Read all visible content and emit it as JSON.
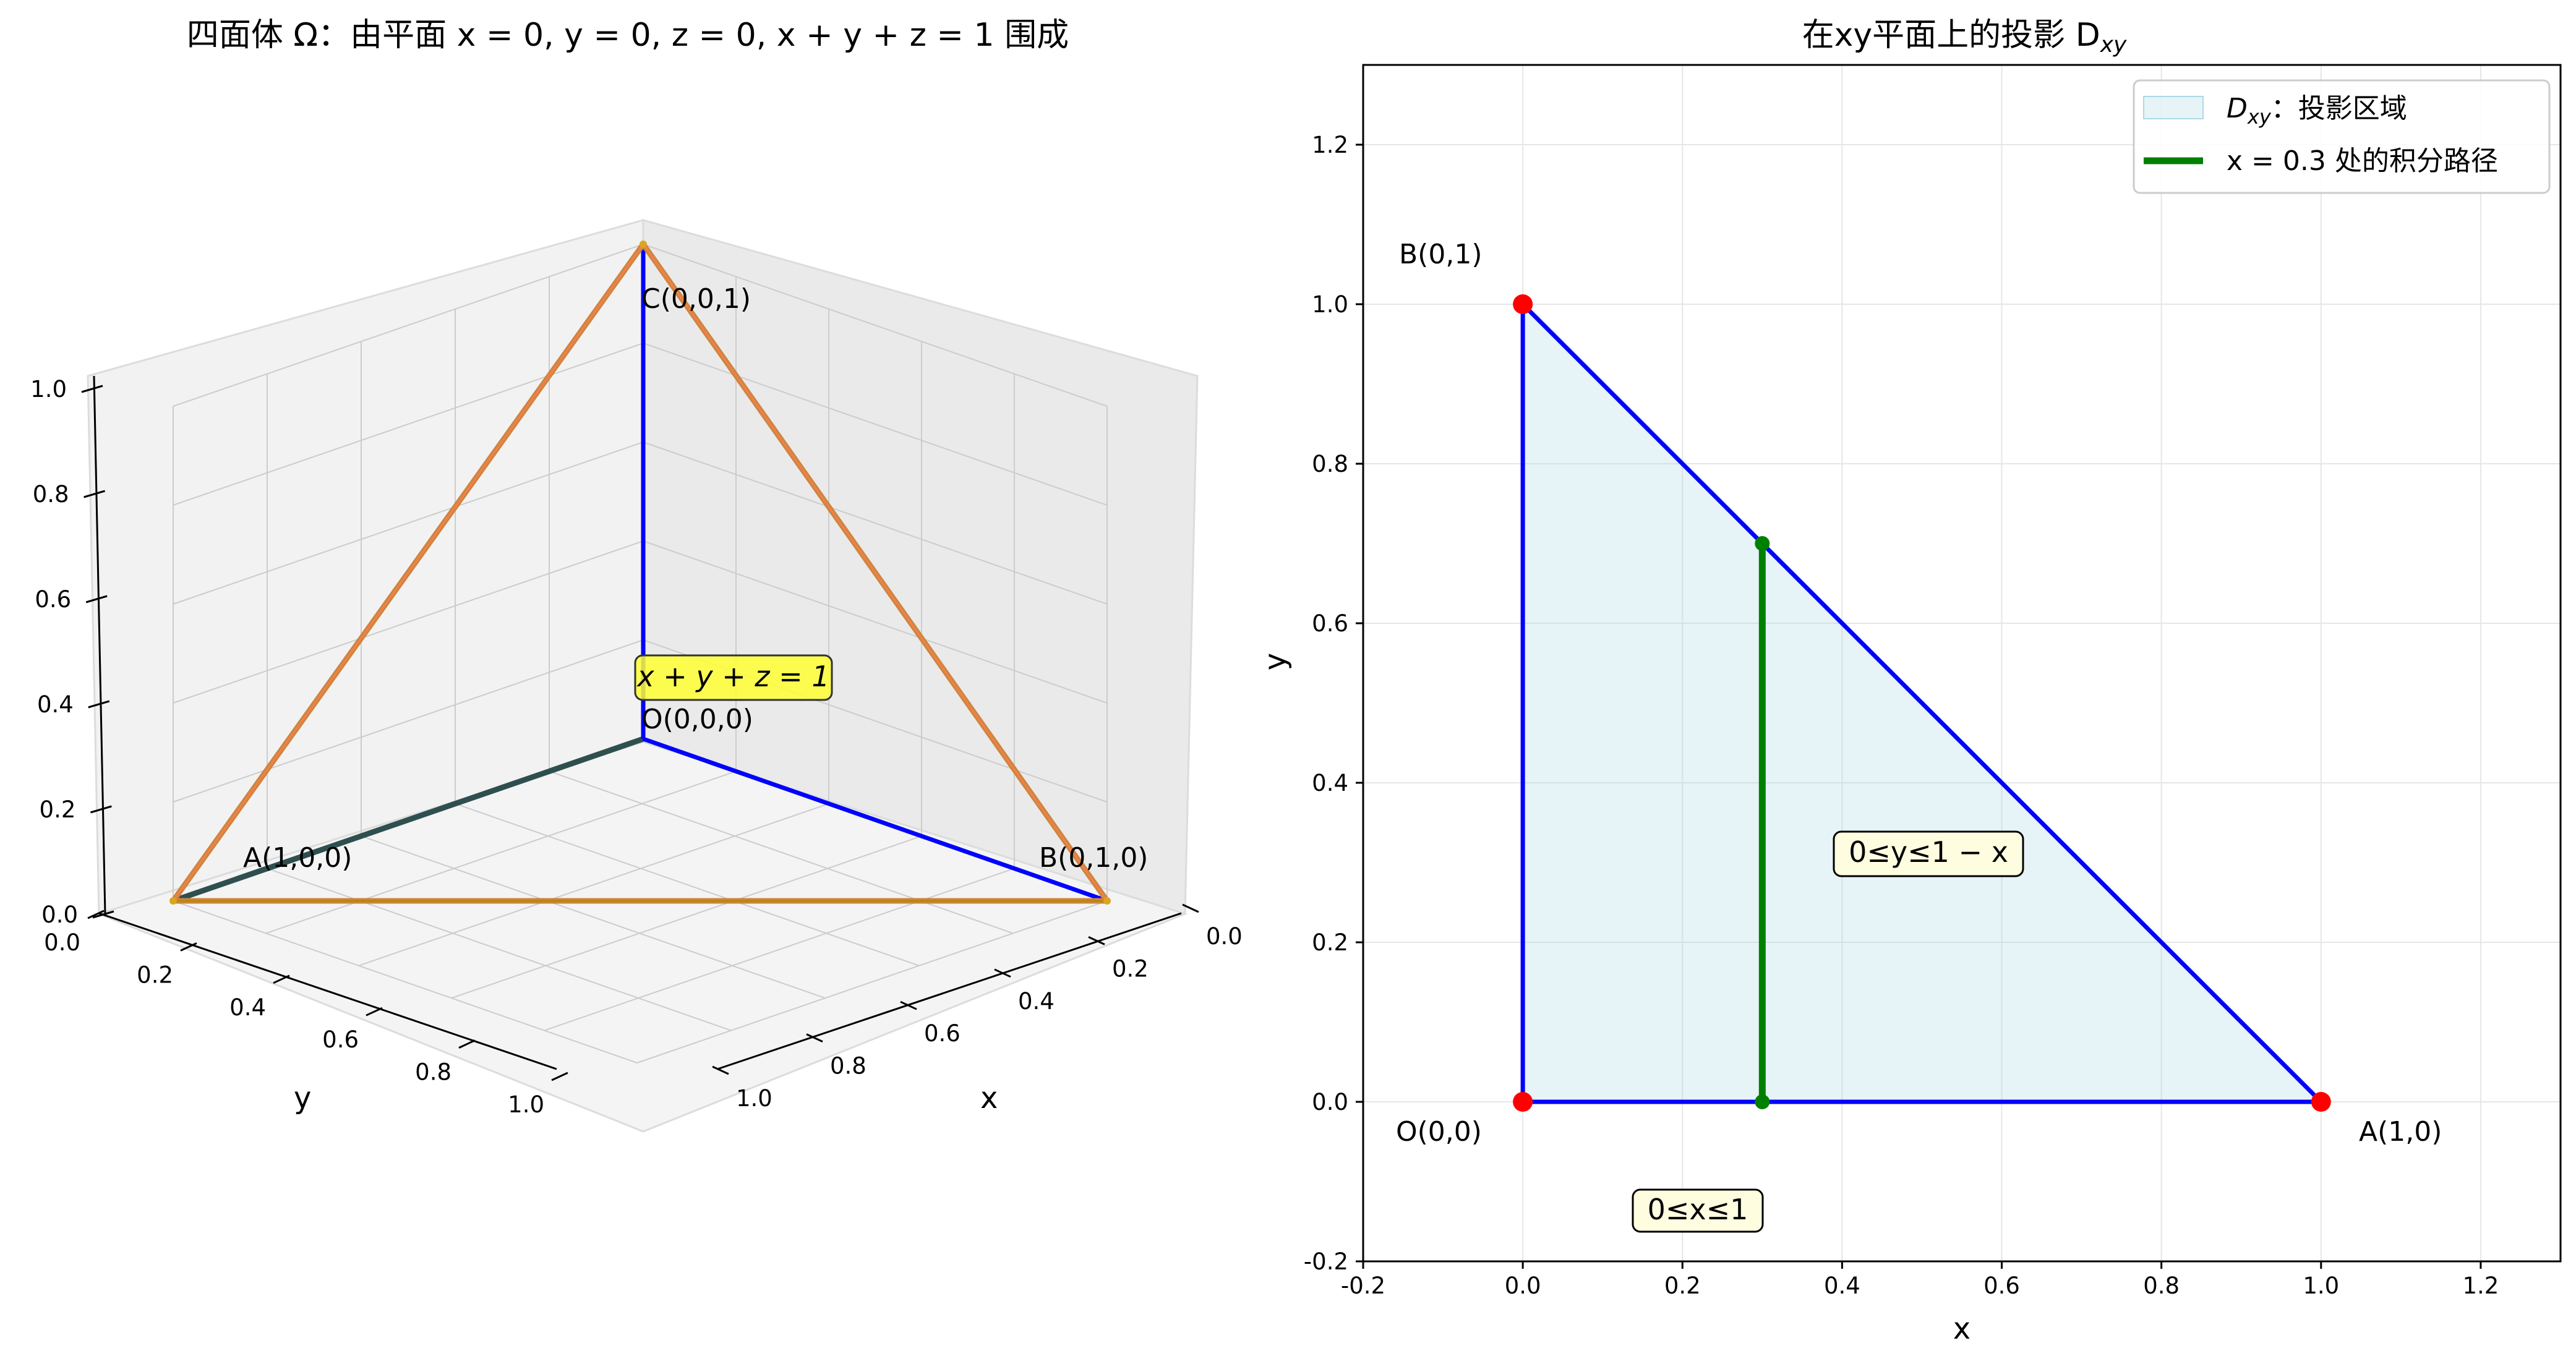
{
  "chart_data": [
    {
      "type": "3d-wireframe",
      "title": "四面体 Ω：由平面 x = 0, y = 0, z = 0, x + y + z = 1 围成",
      "xlabel": "x",
      "ylabel": "y",
      "zlabel": "",
      "xlim": [
        0,
        1
      ],
      "ylim": [
        0,
        1
      ],
      "zlim": [
        0,
        1
      ],
      "x_ticks": [
        "0.0",
        "0.2",
        "0.4",
        "0.6",
        "0.8",
        "1.0"
      ],
      "y_ticks": [
        "0.0",
        "0.2",
        "0.4",
        "0.6",
        "0.8",
        "1.0"
      ],
      "z_ticks": [
        "0.0",
        "0.2",
        "0.4",
        "0.6",
        "0.8",
        "1.0"
      ],
      "vertices": [
        {
          "label": "O(0,0,0)",
          "x": 0,
          "y": 0,
          "z": 0
        },
        {
          "label": "A(1,0,0)",
          "x": 1,
          "y": 0,
          "z": 0
        },
        {
          "label": "B(0,1,0)",
          "x": 0,
          "y": 1,
          "z": 0
        },
        {
          "label": "C(0,0,1)",
          "x": 0,
          "y": 0,
          "z": 1
        }
      ],
      "annotation": "x + y + z = 1",
      "colors": {
        "axes_edges": "#0000ff",
        "oa_edge": "#2f4f4f",
        "face_edge": "#cd853f",
        "plane_box": "#ffff33"
      }
    },
    {
      "type": "area",
      "title": "在xy平面上的投影 D",
      "title_sub": "xy",
      "xlabel": "x",
      "ylabel": "y",
      "xlim": [
        -0.2,
        1.3
      ],
      "ylim": [
        -0.2,
        1.3
      ],
      "x_ticks": [
        "-0.2",
        "0.0",
        "0.2",
        "0.4",
        "0.6",
        "0.8",
        "1.0",
        "1.2"
      ],
      "y_ticks": [
        "-0.2",
        "0.0",
        "0.2",
        "0.4",
        "0.6",
        "0.8",
        "1.0",
        "1.2"
      ],
      "grid": true,
      "legend_position": "top-right",
      "region": {
        "name": "D",
        "name_sub": "xy",
        "name_rest": "：投影区域",
        "vertices": [
          [
            0,
            0
          ],
          [
            1,
            0
          ],
          [
            0,
            1
          ]
        ],
        "color": "#add8e6"
      },
      "path": {
        "name": "x = 0.3 处的积分路径",
        "x": 0.3,
        "y": [
          0,
          0.7
        ],
        "color": "#008000"
      },
      "points": [
        {
          "label": "O(0,0)",
          "x": 0,
          "y": 0
        },
        {
          "label": "A(1,0)",
          "x": 1,
          "y": 0
        },
        {
          "label": "B(0,1)",
          "x": 0,
          "y": 1
        }
      ],
      "annotations": [
        "0≤y≤1 − x",
        "0≤x≤1"
      ],
      "colors": {
        "boundary": "#0000ff",
        "points": "#ff0000",
        "annot_box": "#fffde0"
      }
    }
  ]
}
